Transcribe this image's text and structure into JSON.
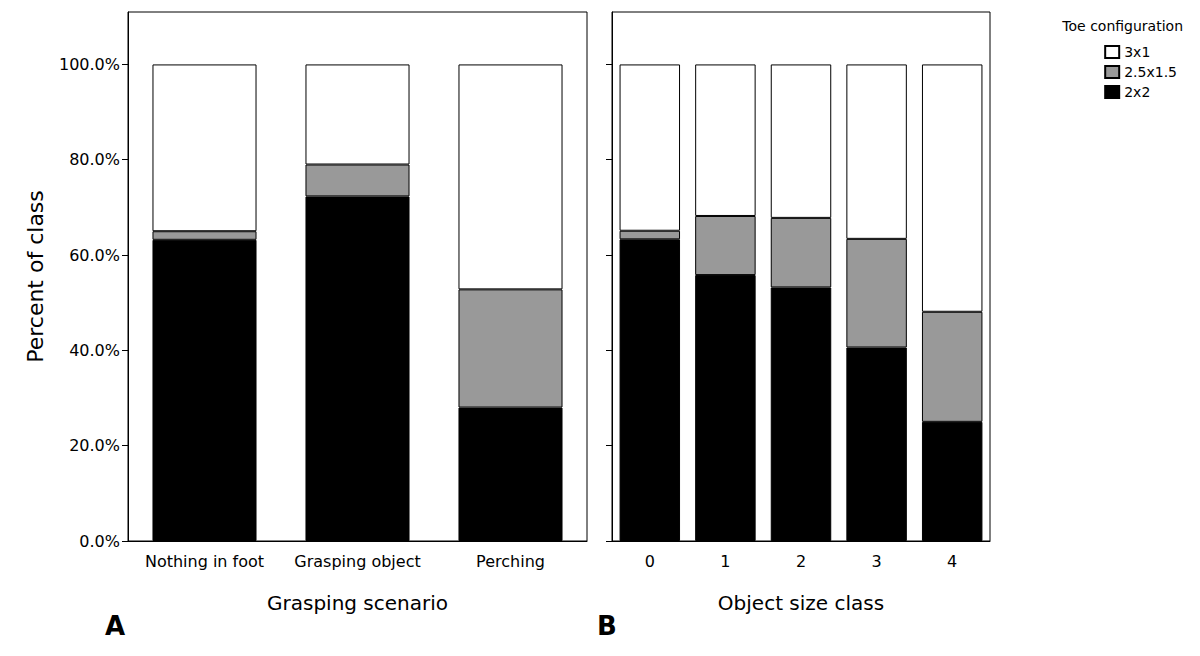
{
  "chart_data": [
    {
      "type": "bar",
      "title": "A",
      "stacked": true,
      "grid": false,
      "x_label": "Grasping scenario",
      "y_label": "Percent of class",
      "categories": [
        "Nothing in foot",
        "Grasping object",
        "Perching"
      ],
      "ylim": [
        0,
        111
      ],
      "yticks": [
        {
          "value": 0,
          "label": "0.0%"
        },
        {
          "value": 20,
          "label": "20.0%"
        },
        {
          "value": 40,
          "label": "40.0%"
        },
        {
          "value": 60,
          "label": "60.0%"
        },
        {
          "value": 80,
          "label": "80.0%"
        },
        {
          "value": 100,
          "label": "100.0%"
        }
      ],
      "series": [
        {
          "name": "3x1",
          "color": "#ffffff",
          "values": [
            35.0,
            21.0,
            47.2
          ]
        },
        {
          "name": "2.5x1.5",
          "color": "#999999",
          "values": [
            1.8,
            6.7,
            24.8
          ]
        },
        {
          "name": "2x2",
          "color": "#000000",
          "values": [
            63.2,
            72.3,
            28.0
          ]
        }
      ]
    },
    {
      "type": "bar",
      "title": "B",
      "stacked": true,
      "grid": false,
      "tick_labels": "x",
      "x_label": "Object size class",
      "categories": [
        "0",
        "1",
        "2",
        "3",
        "4"
      ],
      "ylim": [
        0,
        111
      ],
      "yticks": [
        0,
        20,
        40,
        60,
        80,
        100
      ],
      "legend": "top-right",
      "legend_title": "Toe configuration",
      "series": [
        {
          "name": "3x1",
          "color": "#ffffff",
          "values": [
            34.9,
            31.8,
            32.2,
            36.6,
            51.9
          ]
        },
        {
          "name": "2.5x1.5",
          "color": "#999999",
          "values": [
            1.8,
            12.4,
            14.6,
            22.8,
            23.1
          ]
        },
        {
          "name": "2x2",
          "color": "#000000",
          "values": [
            63.3,
            55.8,
            53.2,
            40.6,
            25.0
          ]
        }
      ]
    }
  ]
}
